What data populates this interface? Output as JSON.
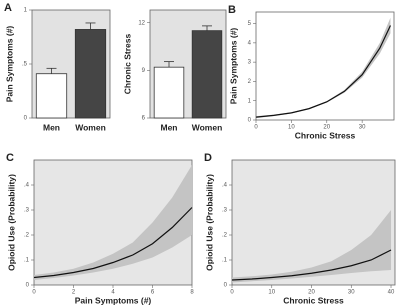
{
  "chart_data": [
    {
      "type": "bar",
      "panel_label": "A",
      "ylabel": "Pain Symptoms (#)",
      "categories": [
        "Men",
        "Women"
      ],
      "values": [
        0.41,
        0.82
      ],
      "errors": [
        0.05,
        0.06
      ],
      "colors": [
        "#ffffff",
        "#454545"
      ],
      "ylim": [
        0,
        1
      ],
      "yticks": [
        0,
        {
          "value": 0.5,
          "label": ".5"
        },
        1
      ],
      "background": "#e2e2e2"
    },
    {
      "type": "bar",
      "ylabel": "Chronic Stress",
      "categories": [
        "Men",
        "Women"
      ],
      "values": [
        9.2,
        11.5
      ],
      "errors": [
        0.35,
        0.3
      ],
      "colors": [
        "#ffffff",
        "#454545"
      ],
      "ylim": [
        6,
        12.8
      ],
      "yticks": [
        6,
        9,
        12
      ],
      "background": "#e2e2e2"
    },
    {
      "type": "line",
      "panel_label": "B",
      "xlabel": "Chronic Stress",
      "ylabel": "Pain Symptoms (#)",
      "x": [
        0,
        5,
        10,
        15,
        20,
        25,
        30,
        35,
        38
      ],
      "values": [
        0.15,
        0.24,
        0.37,
        0.59,
        0.94,
        1.49,
        2.35,
        3.73,
        4.9
      ],
      "lower": [
        0.1,
        0.2,
        0.34,
        0.56,
        0.9,
        1.42,
        2.2,
        3.45,
        4.5
      ],
      "upper": [
        0.2,
        0.28,
        0.4,
        0.62,
        0.98,
        1.56,
        2.5,
        4.0,
        5.3
      ],
      "color": "#111111",
      "band_color": "#c4c4c4",
      "xlim": [
        0,
        39
      ],
      "ylim": [
        0,
        5.6
      ],
      "xticks": [
        0,
        10,
        20,
        30
      ],
      "yticks": [
        0,
        1,
        2,
        3,
        4,
        5
      ],
      "background": "#ffffff"
    },
    {
      "type": "line",
      "panel_label": "C",
      "xlabel": "Pain Symptoms (#)",
      "ylabel": "Opioid Use (Probability)",
      "x": [
        0,
        1,
        2,
        3,
        4,
        5,
        6,
        7,
        8
      ],
      "values": [
        0.03,
        0.038,
        0.05,
        0.066,
        0.09,
        0.12,
        0.165,
        0.23,
        0.31
      ],
      "lower": [
        0.02,
        0.028,
        0.038,
        0.05,
        0.065,
        0.085,
        0.11,
        0.15,
        0.2
      ],
      "upper": [
        0.04,
        0.05,
        0.065,
        0.09,
        0.125,
        0.17,
        0.25,
        0.35,
        0.48
      ],
      "color": "#111111",
      "band_color": "#c4c4c4",
      "xlim": [
        0,
        8
      ],
      "ylim": [
        0,
        0.5
      ],
      "xticks": [
        0,
        2,
        4,
        6,
        8
      ],
      "yticks": [
        0,
        {
          "value": 0.1,
          "label": ".1"
        },
        {
          "value": 0.2,
          "label": ".2"
        },
        {
          "value": 0.3,
          "label": ".3"
        },
        {
          "value": 0.4,
          "label": ".4"
        }
      ],
      "background": "#e6e6e6"
    },
    {
      "type": "line",
      "panel_label": "D",
      "xlabel": "Chronic Stress",
      "ylabel": "Opioid Use (Probability)",
      "x": [
        0,
        5,
        10,
        15,
        20,
        25,
        30,
        35,
        40
      ],
      "values": [
        0.02,
        0.024,
        0.03,
        0.037,
        0.047,
        0.06,
        0.077,
        0.1,
        0.14
      ],
      "lower": [
        0.01,
        0.015,
        0.02,
        0.026,
        0.033,
        0.04,
        0.048,
        0.055,
        0.06
      ],
      "upper": [
        0.03,
        0.035,
        0.042,
        0.053,
        0.07,
        0.095,
        0.14,
        0.2,
        0.3
      ],
      "color": "#111111",
      "band_color": "#c4c4c4",
      "xlim": [
        0,
        41
      ],
      "ylim": [
        0,
        0.5
      ],
      "xticks": [
        0,
        10,
        20,
        30,
        40
      ],
      "yticks": [
        0,
        {
          "value": 0.1,
          "label": ".1"
        },
        {
          "value": 0.2,
          "label": ".2"
        },
        {
          "value": 0.3,
          "label": ".3"
        },
        {
          "value": 0.4,
          "label": ".4"
        }
      ],
      "background": "#e6e6e6"
    }
  ]
}
